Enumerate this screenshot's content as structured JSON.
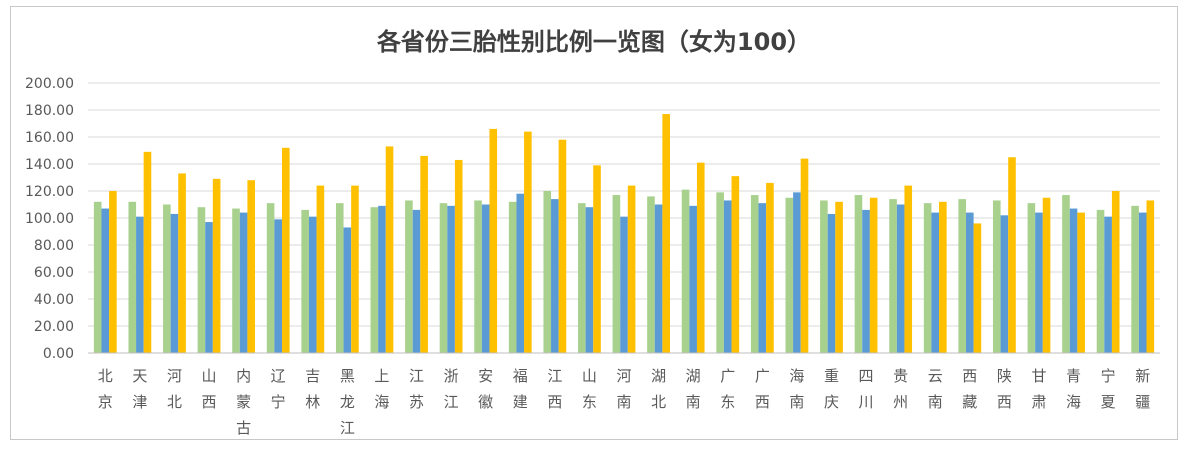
{
  "chart_data": {
    "type": "bar",
    "title": "各省份三胎性别比例一览图（女为100）",
    "xlabel": "",
    "ylabel": "",
    "ylim": [
      0,
      200
    ],
    "yticks": [
      "0.00",
      "20.00",
      "40.00",
      "60.00",
      "80.00",
      "100.00",
      "120.00",
      "140.00",
      "160.00",
      "180.00",
      "200.00"
    ],
    "grid": true,
    "legend": "none",
    "categories": [
      "北京",
      "天津",
      "河北",
      "山西",
      "内蒙古",
      "辽宁",
      "吉林",
      "黑龙江",
      "上海",
      "江苏",
      "浙江",
      "安徽",
      "福建",
      "江西",
      "山东",
      "河南",
      "湖北",
      "湖南",
      "广东",
      "广西",
      "海南",
      "重庆",
      "四川",
      "贵州",
      "云南",
      "西藏",
      "陕西",
      "甘肃",
      "青海",
      "宁夏",
      "新疆"
    ],
    "series": [
      {
        "color": "#a9d18e",
        "values": [
          112,
          112,
          110,
          108,
          107,
          111,
          106,
          111,
          108,
          113,
          111,
          113,
          112,
          120,
          111,
          117,
          116,
          121,
          119,
          117,
          115,
          113,
          117,
          114,
          111,
          114,
          113,
          111,
          117,
          106,
          109
        ]
      },
      {
        "color": "#5b9bd5",
        "values": [
          107,
          101,
          103,
          97,
          104,
          99,
          101,
          93,
          109,
          106,
          109,
          110,
          118,
          114,
          108,
          101,
          110,
          109,
          113,
          111,
          119,
          103,
          106,
          110,
          104,
          104,
          102,
          104,
          107,
          101,
          104
        ]
      },
      {
        "color": "#ffc000",
        "values": [
          120,
          149,
          133,
          129,
          128,
          152,
          124,
          124,
          153,
          146,
          143,
          166,
          164,
          158,
          139,
          124,
          177,
          141,
          131,
          126,
          144,
          112,
          115,
          124,
          112,
          96,
          145,
          115,
          104,
          120,
          113
        ]
      }
    ]
  }
}
